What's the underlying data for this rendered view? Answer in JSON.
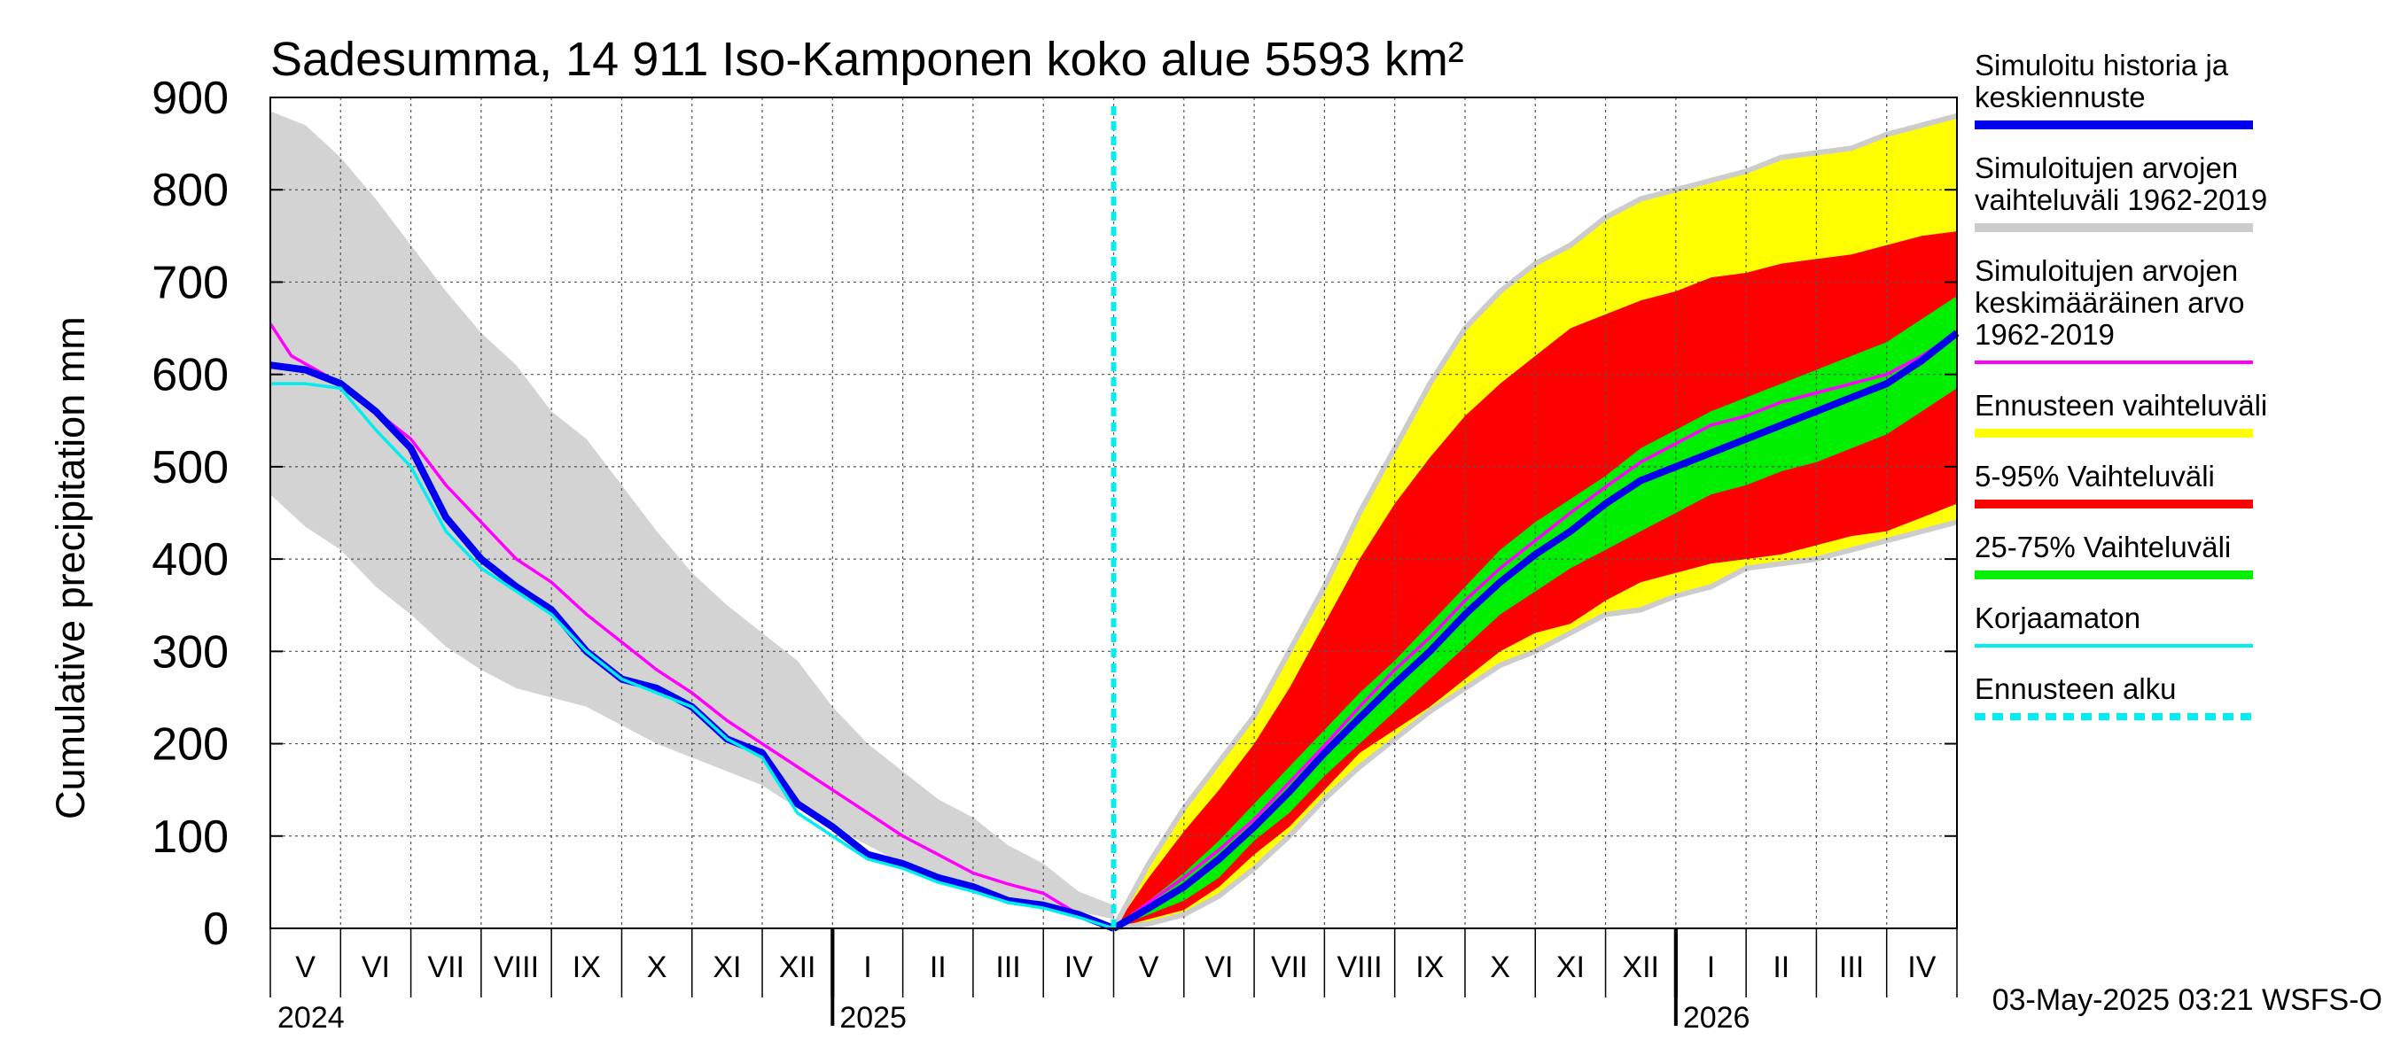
{
  "chart_data": {
    "type": "area",
    "title": "Sadesumma, 14 911 Iso-Kamponen koko alue 5593 km²",
    "ylabel": "Cumulative precipitation   mm",
    "xlabel": "",
    "ylim": [
      0,
      900
    ],
    "yticks": [
      0,
      100,
      200,
      300,
      400,
      500,
      600,
      700,
      800,
      900
    ],
    "x_axis": {
      "start": "2024-04-01",
      "end": "2026-05-01",
      "months": [
        "V",
        "VI",
        "VII",
        "VIII",
        "IX",
        "X",
        "XI",
        "XII",
        "I",
        "II",
        "III",
        "IV",
        "V",
        "VI",
        "VII",
        "VIII",
        "IX",
        "X",
        "XI",
        "XII",
        "I",
        "II",
        "III",
        "IV"
      ],
      "years": [
        "2024",
        "2025",
        "2026"
      ]
    },
    "forecast_start_month": 12.0,
    "grid": true,
    "legend": {
      "position": "right",
      "entries": [
        {
          "label_lines": [
            "Simuloitu historia ja",
            "keskiennuste"
          ],
          "color": "#0000ee",
          "style": "thick"
        },
        {
          "label_lines": [
            "Simuloitujen arvojen",
            "vaihteluväli 1962-2019"
          ],
          "color": "#cccccc",
          "style": "thick"
        },
        {
          "label_lines": [
            "Simuloitujen arvojen",
            "keskimääräinen arvo",
            "   1962-2019"
          ],
          "color": "#ff00ff",
          "style": "thin"
        },
        {
          "label_lines": [
            "Ennusteen vaihteluväli"
          ],
          "color": "#ffff00",
          "style": "thick"
        },
        {
          "label_lines": [
            "5-95% Vaihteluväli"
          ],
          "color": "#ff0000",
          "style": "thick"
        },
        {
          "label_lines": [
            "25-75% Vaihteluväli"
          ],
          "color": "#00ee00",
          "style": "thick"
        },
        {
          "label_lines": [
            "Korjaamaton"
          ],
          "color": "#00eeee",
          "style": "thin"
        },
        {
          "label_lines": [
            "Ennusteen alku"
          ],
          "color": "#00eeee",
          "style": "dashed"
        }
      ]
    },
    "series": {
      "historical_range": {
        "name": "Simuloitujen arvojen vaihteluväli 1962-2019",
        "color": "#d3d3d3",
        "months": [
          0,
          0.5,
          1,
          1.5,
          2,
          2.5,
          3,
          3.5,
          4,
          4.5,
          5,
          5.5,
          6,
          6.5,
          7,
          7.5,
          8,
          8.5,
          9,
          9.5,
          10,
          10.5,
          11,
          11.5,
          12
        ],
        "upper": [
          885,
          870,
          835,
          790,
          740,
          690,
          645,
          610,
          560,
          530,
          480,
          430,
          385,
          350,
          320,
          290,
          240,
          200,
          170,
          140,
          120,
          90,
          70,
          40,
          25
        ],
        "lower": [
          470,
          435,
          410,
          370,
          340,
          305,
          280,
          260,
          250,
          240,
          220,
          200,
          185,
          170,
          155,
          130,
          110,
          90,
          70,
          55,
          40,
          28,
          20,
          18,
          10
        ]
      },
      "historical_mean": {
        "name": "Simuloitujen arvojen keskimääräinen arvo 1962-2019",
        "color": "#ff00ff",
        "months": [
          0,
          0.3,
          1,
          1.5,
          2,
          2.5,
          3,
          3.5,
          4,
          4.5,
          5,
          5.5,
          6,
          6.5,
          7,
          7.5,
          8,
          8.5,
          9,
          9.5,
          10,
          10.5,
          11,
          11.5,
          12
        ],
        "values": [
          655,
          620,
          590,
          560,
          530,
          480,
          440,
          400,
          375,
          340,
          310,
          280,
          255,
          225,
          200,
          175,
          150,
          125,
          100,
          80,
          60,
          48,
          38,
          15,
          0
        ]
      },
      "simulated_history": {
        "name": "Simuloitu historia ja keskiennuste",
        "color": "#0000ee",
        "months": [
          0,
          0.5,
          1,
          1.5,
          2,
          2.5,
          3,
          3.5,
          4,
          4.5,
          5,
          5.5,
          6,
          6.5,
          7,
          7.5,
          8,
          8.5,
          9,
          9.5,
          10,
          10.5,
          11,
          11.5,
          12
        ],
        "values": [
          610,
          605,
          590,
          560,
          520,
          445,
          400,
          370,
          345,
          300,
          270,
          260,
          240,
          205,
          190,
          135,
          110,
          80,
          70,
          55,
          45,
          30,
          25,
          15,
          0
        ]
      },
      "uncorrected": {
        "name": "Korjaamaton",
        "color": "#00eeee",
        "months": [
          0,
          0.5,
          1,
          1.5,
          2,
          2.5,
          3,
          3.5,
          4,
          4.5,
          5,
          5.5,
          6,
          6.5,
          7,
          7.5,
          8,
          8.5,
          9,
          9.5,
          10,
          10.5,
          11,
          11.5,
          12
        ],
        "values": [
          590,
          590,
          585,
          540,
          500,
          430,
          390,
          365,
          340,
          300,
          270,
          255,
          240,
          205,
          185,
          125,
          100,
          75,
          65,
          50,
          40,
          28,
          22,
          12,
          0
        ]
      },
      "forecast_envelope": {
        "name": "Ennusteen vaihteluväli",
        "color": "#ffff00",
        "months": [
          12,
          12.5,
          13,
          13.5,
          14,
          14.5,
          15,
          15.5,
          16,
          16.5,
          17,
          17.5,
          18,
          18.5,
          19,
          19.5,
          20,
          20.5,
          21,
          21.5,
          22,
          22.5,
          23,
          23.5,
          24
        ],
        "upper": [
          0,
          70,
          130,
          180,
          230,
          300,
          370,
          450,
          520,
          590,
          650,
          690,
          720,
          740,
          770,
          790,
          800,
          810,
          820,
          835,
          840,
          845,
          860,
          870,
          880
        ],
        "lower": [
          0,
          5,
          15,
          35,
          65,
          100,
          140,
          175,
          205,
          235,
          260,
          285,
          300,
          320,
          340,
          345,
          360,
          370,
          390,
          395,
          400,
          410,
          420,
          430,
          440
        ]
      },
      "forecast_5_95": {
        "name": "5-95% Vaihteluväli",
        "color": "#ff0000",
        "months": [
          12,
          12.5,
          13,
          13.5,
          14,
          14.5,
          15,
          15.5,
          16,
          16.5,
          17,
          17.5,
          18,
          18.5,
          19,
          19.5,
          20,
          20.5,
          21,
          21.5,
          22,
          22.5,
          23,
          23.5,
          24
        ],
        "upper": [
          0,
          55,
          105,
          150,
          200,
          260,
          330,
          400,
          460,
          510,
          555,
          590,
          620,
          650,
          665,
          680,
          690,
          705,
          710,
          720,
          725,
          730,
          740,
          750,
          755
        ],
        "lower": [
          0,
          10,
          20,
          45,
          80,
          110,
          150,
          190,
          215,
          240,
          270,
          300,
          320,
          330,
          355,
          375,
          385,
          395,
          400,
          405,
          415,
          425,
          430,
          445,
          460
        ]
      },
      "forecast_25_75": {
        "name": "25-75% Vaihteluväli",
        "color": "#00ee00",
        "months": [
          12,
          12.5,
          13,
          13.5,
          14,
          14.5,
          15,
          15.5,
          16,
          16.5,
          17,
          17.5,
          18,
          18.5,
          19,
          19.5,
          20,
          20.5,
          21,
          21.5,
          22,
          22.5,
          23,
          23.5,
          24
        ],
        "upper": [
          0,
          30,
          60,
          95,
          135,
          175,
          215,
          255,
          290,
          330,
          370,
          410,
          440,
          465,
          490,
          520,
          540,
          560,
          575,
          590,
          605,
          620,
          635,
          660,
          685
        ],
        "lower": [
          0,
          15,
          30,
          55,
          95,
          125,
          165,
          200,
          235,
          270,
          305,
          340,
          365,
          390,
          410,
          430,
          450,
          470,
          480,
          495,
          505,
          520,
          535,
          560,
          585
        ]
      },
      "forecast_mean": {
        "name": "keskiennuste",
        "color": "#0000ee",
        "months": [
          12,
          12.5,
          13,
          13.5,
          14,
          14.5,
          15,
          15.5,
          16,
          16.5,
          17,
          17.5,
          18,
          18.5,
          19,
          19.5,
          20,
          20.5,
          21,
          21.5,
          22,
          22.5,
          23,
          23.5,
          24
        ],
        "values": [
          0,
          22,
          45,
          75,
          110,
          148,
          190,
          228,
          265,
          300,
          340,
          375,
          405,
          430,
          460,
          485,
          500,
          515,
          530,
          545,
          560,
          575,
          590,
          615,
          645
        ]
      },
      "forecast_climate_mean": {
        "name": "Simuloitujen arvojen keskimääräinen arvo (ennuste)",
        "color": "#ff00ff",
        "months": [
          12,
          12.5,
          13,
          13.5,
          14,
          14.5,
          15,
          15.5,
          16,
          16.5,
          17,
          17.5,
          18,
          18.5,
          19,
          19.5,
          20,
          20.5,
          21,
          21.5,
          22,
          22.5,
          23,
          23.5,
          24
        ],
        "values": [
          0,
          28,
          55,
          85,
          118,
          158,
          198,
          240,
          280,
          315,
          355,
          390,
          420,
          450,
          478,
          505,
          525,
          545,
          555,
          570,
          580,
          590,
          600,
          620,
          645
        ]
      }
    }
  },
  "footer": {
    "timestamp": "03-May-2025 03:21 WSFS-O"
  }
}
